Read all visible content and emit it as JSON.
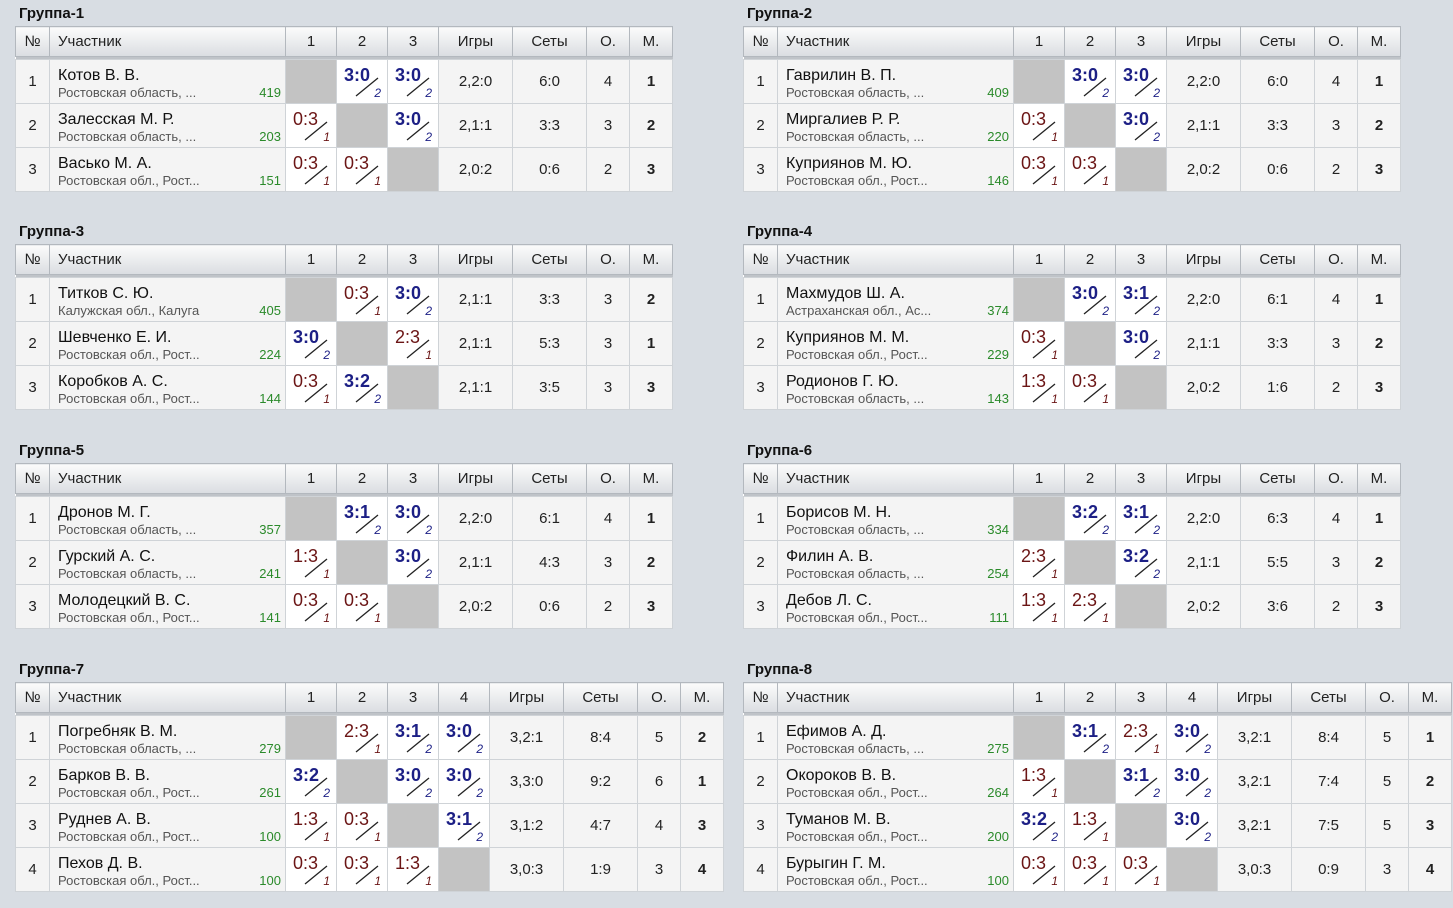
{
  "headers": {
    "num": "№",
    "player": "Участник",
    "games": "Игры",
    "sets": "Сеты",
    "points": "О.",
    "place": "М."
  },
  "groups": [
    {
      "title": "Группа-1",
      "players": [
        {
          "num": "1",
          "name": "Котов В. В.",
          "region": "Ростовская область, ...",
          "rating": "419",
          "results": [
            null,
            {
              "s": "3:0",
              "p": "2",
              "w": true
            },
            {
              "s": "3:0",
              "p": "2",
              "w": true
            }
          ],
          "games": "2,2:0",
          "sets": "6:0",
          "points": "4",
          "place": "1"
        },
        {
          "num": "2",
          "name": "Залесская М. Р.",
          "region": "Ростовская область, ...",
          "rating": "203",
          "results": [
            {
              "s": "0:3",
              "p": "1",
              "w": false
            },
            null,
            {
              "s": "3:0",
              "p": "2",
              "w": true
            }
          ],
          "games": "2,1:1",
          "sets": "3:3",
          "points": "3",
          "place": "2"
        },
        {
          "num": "3",
          "name": "Васько М. А.",
          "region": "Ростовская обл., Рост...",
          "rating": "151",
          "results": [
            {
              "s": "0:3",
              "p": "1",
              "w": false
            },
            {
              "s": "0:3",
              "p": "1",
              "w": false
            },
            null
          ],
          "games": "2,0:2",
          "sets": "0:6",
          "points": "2",
          "place": "3"
        }
      ]
    },
    {
      "title": "Группа-2",
      "players": [
        {
          "num": "1",
          "name": "Гаврилин В. П.",
          "region": "Ростовская область, ...",
          "rating": "409",
          "results": [
            null,
            {
              "s": "3:0",
              "p": "2",
              "w": true
            },
            {
              "s": "3:0",
              "p": "2",
              "w": true
            }
          ],
          "games": "2,2:0",
          "sets": "6:0",
          "points": "4",
          "place": "1"
        },
        {
          "num": "2",
          "name": "Миргалиев Р. Р.",
          "region": "Ростовская область, ...",
          "rating": "220",
          "results": [
            {
              "s": "0:3",
              "p": "1",
              "w": false
            },
            null,
            {
              "s": "3:0",
              "p": "2",
              "w": true
            }
          ],
          "games": "2,1:1",
          "sets": "3:3",
          "points": "3",
          "place": "2"
        },
        {
          "num": "3",
          "name": "Куприянов М. Ю.",
          "region": "Ростовская обл., Рост...",
          "rating": "146",
          "results": [
            {
              "s": "0:3",
              "p": "1",
              "w": false
            },
            {
              "s": "0:3",
              "p": "1",
              "w": false
            },
            null
          ],
          "games": "2,0:2",
          "sets": "0:6",
          "points": "2",
          "place": "3"
        }
      ]
    },
    {
      "title": "Группа-3",
      "players": [
        {
          "num": "1",
          "name": "Титков С. Ю.",
          "region": "Калужская обл., Калуга",
          "rating": "405",
          "results": [
            null,
            {
              "s": "0:3",
              "p": "1",
              "w": false
            },
            {
              "s": "3:0",
              "p": "2",
              "w": true
            }
          ],
          "games": "2,1:1",
          "sets": "3:3",
          "points": "3",
          "place": "2"
        },
        {
          "num": "2",
          "name": "Шевченко Е. И.",
          "region": "Ростовская обл., Рост...",
          "rating": "224",
          "results": [
            {
              "s": "3:0",
              "p": "2",
              "w": true
            },
            null,
            {
              "s": "2:3",
              "p": "1",
              "w": false
            }
          ],
          "games": "2,1:1",
          "sets": "5:3",
          "points": "3",
          "place": "1"
        },
        {
          "num": "3",
          "name": "Коробков А. С.",
          "region": "Ростовская обл., Рост...",
          "rating": "144",
          "results": [
            {
              "s": "0:3",
              "p": "1",
              "w": false
            },
            {
              "s": "3:2",
              "p": "2",
              "w": true
            },
            null
          ],
          "games": "2,1:1",
          "sets": "3:5",
          "points": "3",
          "place": "3"
        }
      ]
    },
    {
      "title": "Группа-4",
      "players": [
        {
          "num": "1",
          "name": "Махмудов Ш. А.",
          "region": "Астраханская обл., Ас...",
          "rating": "374",
          "results": [
            null,
            {
              "s": "3:0",
              "p": "2",
              "w": true
            },
            {
              "s": "3:1",
              "p": "2",
              "w": true
            }
          ],
          "games": "2,2:0",
          "sets": "6:1",
          "points": "4",
          "place": "1"
        },
        {
          "num": "2",
          "name": "Куприянов М. М.",
          "region": "Ростовская обл., Рост...",
          "rating": "229",
          "results": [
            {
              "s": "0:3",
              "p": "1",
              "w": false
            },
            null,
            {
              "s": "3:0",
              "p": "2",
              "w": true
            }
          ],
          "games": "2,1:1",
          "sets": "3:3",
          "points": "3",
          "place": "2"
        },
        {
          "num": "3",
          "name": "Родионов Г. Ю.",
          "region": "Ростовская область, ...",
          "rating": "143",
          "results": [
            {
              "s": "1:3",
              "p": "1",
              "w": false
            },
            {
              "s": "0:3",
              "p": "1",
              "w": false
            },
            null
          ],
          "games": "2,0:2",
          "sets": "1:6",
          "points": "2",
          "place": "3"
        }
      ]
    },
    {
      "title": "Группа-5",
      "players": [
        {
          "num": "1",
          "name": "Дронов М. Г.",
          "region": "Ростовская область, ...",
          "rating": "357",
          "results": [
            null,
            {
              "s": "3:1",
              "p": "2",
              "w": true
            },
            {
              "s": "3:0",
              "p": "2",
              "w": true
            }
          ],
          "games": "2,2:0",
          "sets": "6:1",
          "points": "4",
          "place": "1"
        },
        {
          "num": "2",
          "name": "Гурский А. С.",
          "region": "Ростовская область, ...",
          "rating": "241",
          "results": [
            {
              "s": "1:3",
              "p": "1",
              "w": false
            },
            null,
            {
              "s": "3:0",
              "p": "2",
              "w": true
            }
          ],
          "games": "2,1:1",
          "sets": "4:3",
          "points": "3",
          "place": "2"
        },
        {
          "num": "3",
          "name": "Молодецкий В. С.",
          "region": "Ростовская обл., Рост...",
          "rating": "141",
          "results": [
            {
              "s": "0:3",
              "p": "1",
              "w": false
            },
            {
              "s": "0:3",
              "p": "1",
              "w": false
            },
            null
          ],
          "games": "2,0:2",
          "sets": "0:6",
          "points": "2",
          "place": "3"
        }
      ]
    },
    {
      "title": "Группа-6",
      "players": [
        {
          "num": "1",
          "name": "Борисов М. Н.",
          "region": "Ростовская область, ...",
          "rating": "334",
          "results": [
            null,
            {
              "s": "3:2",
              "p": "2",
              "w": true
            },
            {
              "s": "3:1",
              "p": "2",
              "w": true
            }
          ],
          "games": "2,2:0",
          "sets": "6:3",
          "points": "4",
          "place": "1"
        },
        {
          "num": "2",
          "name": "Филин А. В.",
          "region": "Ростовская область, ...",
          "rating": "254",
          "results": [
            {
              "s": "2:3",
              "p": "1",
              "w": false
            },
            null,
            {
              "s": "3:2",
              "p": "2",
              "w": true
            }
          ],
          "games": "2,1:1",
          "sets": "5:5",
          "points": "3",
          "place": "2"
        },
        {
          "num": "3",
          "name": "Дебов Л. С.",
          "region": "Ростовская обл., Рост...",
          "rating": "111",
          "results": [
            {
              "s": "1:3",
              "p": "1",
              "w": false
            },
            {
              "s": "2:3",
              "p": "1",
              "w": false
            },
            null
          ],
          "games": "2,0:2",
          "sets": "3:6",
          "points": "2",
          "place": "3"
        }
      ]
    },
    {
      "title": "Группа-7",
      "players": [
        {
          "num": "1",
          "name": "Погребняк В. М.",
          "region": "Ростовская область, ...",
          "rating": "279",
          "results": [
            null,
            {
              "s": "2:3",
              "p": "1",
              "w": false
            },
            {
              "s": "3:1",
              "p": "2",
              "w": true
            },
            {
              "s": "3:0",
              "p": "2",
              "w": true
            }
          ],
          "games": "3,2:1",
          "sets": "8:4",
          "points": "5",
          "place": "2"
        },
        {
          "num": "2",
          "name": "Барков В. В.",
          "region": "Ростовская обл., Рост...",
          "rating": "261",
          "results": [
            {
              "s": "3:2",
              "p": "2",
              "w": true
            },
            null,
            {
              "s": "3:0",
              "p": "2",
              "w": true
            },
            {
              "s": "3:0",
              "p": "2",
              "w": true
            }
          ],
          "games": "3,3:0",
          "sets": "9:2",
          "points": "6",
          "place": "1"
        },
        {
          "num": "3",
          "name": "Руднев А. В.",
          "region": "Ростовская обл., Рост...",
          "rating": "100",
          "results": [
            {
              "s": "1:3",
              "p": "1",
              "w": false
            },
            {
              "s": "0:3",
              "p": "1",
              "w": false
            },
            null,
            {
              "s": "3:1",
              "p": "2",
              "w": true
            }
          ],
          "games": "3,1:2",
          "sets": "4:7",
          "points": "4",
          "place": "3"
        },
        {
          "num": "4",
          "name": "Пехов Д. В.",
          "region": "Ростовская обл., Рост...",
          "rating": "100",
          "results": [
            {
              "s": "0:3",
              "p": "1",
              "w": false
            },
            {
              "s": "0:3",
              "p": "1",
              "w": false
            },
            {
              "s": "1:3",
              "p": "1",
              "w": false
            },
            null
          ],
          "games": "3,0:3",
          "sets": "1:9",
          "points": "3",
          "place": "4"
        }
      ]
    },
    {
      "title": "Группа-8",
      "players": [
        {
          "num": "1",
          "name": "Ефимов А. Д.",
          "region": "Ростовская область, ...",
          "rating": "275",
          "results": [
            null,
            {
              "s": "3:1",
              "p": "2",
              "w": true
            },
            {
              "s": "2:3",
              "p": "1",
              "w": false
            },
            {
              "s": "3:0",
              "p": "2",
              "w": true
            }
          ],
          "games": "3,2:1",
          "sets": "8:4",
          "points": "5",
          "place": "1"
        },
        {
          "num": "2",
          "name": "Окороков В. В.",
          "region": "Ростовская обл., Рост...",
          "rating": "264",
          "results": [
            {
              "s": "1:3",
              "p": "1",
              "w": false
            },
            null,
            {
              "s": "3:1",
              "p": "2",
              "w": true
            },
            {
              "s": "3:0",
              "p": "2",
              "w": true
            }
          ],
          "games": "3,2:1",
          "sets": "7:4",
          "points": "5",
          "place": "2"
        },
        {
          "num": "3",
          "name": "Туманов М. В.",
          "region": "Ростовская обл., Рост...",
          "rating": "200",
          "results": [
            {
              "s": "3:2",
              "p": "2",
              "w": true
            },
            {
              "s": "1:3",
              "p": "1",
              "w": false
            },
            null,
            {
              "s": "3:0",
              "p": "2",
              "w": true
            }
          ],
          "games": "3,2:1",
          "sets": "7:5",
          "points": "5",
          "place": "3"
        },
        {
          "num": "4",
          "name": "Бурыгин Г. М.",
          "region": "Ростовская обл., Рост...",
          "rating": "100",
          "results": [
            {
              "s": "0:3",
              "p": "1",
              "w": false
            },
            {
              "s": "0:3",
              "p": "1",
              "w": false
            },
            {
              "s": "0:3",
              "p": "1",
              "w": false
            },
            null
          ],
          "games": "3,0:3",
          "sets": "0:9",
          "points": "3",
          "place": "4"
        }
      ]
    }
  ]
}
